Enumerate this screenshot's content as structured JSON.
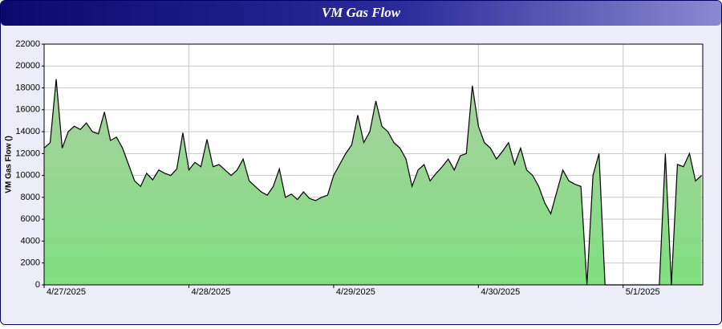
{
  "chart_data": {
    "type": "area",
    "title": "VM Gas Flow",
    "y_label": "VM Gas Flow ()",
    "x": [
      0,
      1,
      2,
      3,
      4,
      5,
      6,
      7,
      8,
      9,
      10,
      11,
      12,
      13,
      14,
      15,
      16,
      17,
      18,
      19,
      20,
      21,
      22,
      23,
      24,
      25,
      26,
      27,
      28,
      29,
      30,
      31,
      32,
      33,
      34,
      35,
      36,
      37,
      38,
      39,
      40,
      41,
      42,
      43,
      44,
      45,
      46,
      47,
      48,
      49,
      50,
      51,
      52,
      53,
      54,
      55,
      56,
      57,
      58,
      59,
      60,
      61,
      62,
      63,
      64,
      65,
      66,
      67,
      68,
      69,
      70,
      71,
      72,
      73,
      74,
      75,
      76,
      77,
      78,
      79,
      80,
      81,
      82,
      83,
      84,
      85,
      86,
      87,
      88,
      89,
      90,
      91,
      92,
      93,
      94,
      95,
      96,
      97,
      98,
      99,
      100,
      101,
      102,
      103,
      104,
      105,
      106,
      107,
      108,
      109
    ],
    "series": [
      {
        "name": "VM Gas Flow",
        "color": "#000000",
        "fill": "#86e086",
        "values": [
          12500,
          13000,
          18800,
          12500,
          14000,
          14500,
          14200,
          14800,
          14000,
          13800,
          15800,
          13200,
          13500,
          12500,
          11000,
          9500,
          9000,
          10200,
          9600,
          10500,
          10200,
          10000,
          10600,
          13900,
          10500,
          11200,
          10800,
          13300,
          10800,
          11000,
          10500,
          10000,
          10500,
          11500,
          9500,
          9000,
          8500,
          8200,
          9000,
          10600,
          8000,
          8300,
          7800,
          8500,
          7900,
          7700,
          8000,
          8200,
          10000,
          11000,
          12000,
          12800,
          15500,
          13000,
          14000,
          16800,
          14500,
          14000,
          13000,
          12500,
          11500,
          9000,
          10500,
          11000,
          9500,
          10200,
          10800,
          11500,
          10500,
          11800,
          12000,
          18200,
          14500,
          13000,
          12500,
          11500,
          12200,
          13000,
          11000,
          12500,
          10500,
          10000,
          9000,
          7500,
          6500,
          8500,
          10500,
          9500,
          9200,
          9000,
          0,
          10000,
          12000,
          0,
          0,
          0,
          0,
          0,
          0,
          0,
          0,
          0,
          0,
          12000,
          0,
          11000,
          10800,
          12000,
          9500,
          10000
        ]
      }
    ],
    "xlim": [
      0,
      109.2
    ],
    "xticks": [
      {
        "value": 0,
        "label": "4/27/2025"
      },
      {
        "value": 24,
        "label": "4/28/2025"
      },
      {
        "value": 48,
        "label": "4/29/2025"
      },
      {
        "value": 72,
        "label": "4/30/2025"
      },
      {
        "value": 96,
        "label": "5/1/2025"
      }
    ],
    "ylim": [
      0,
      22000
    ],
    "yticks": [
      0,
      2000,
      4000,
      6000,
      8000,
      10000,
      12000,
      14000,
      16000,
      18000,
      20000,
      22000
    ],
    "grid": true
  }
}
